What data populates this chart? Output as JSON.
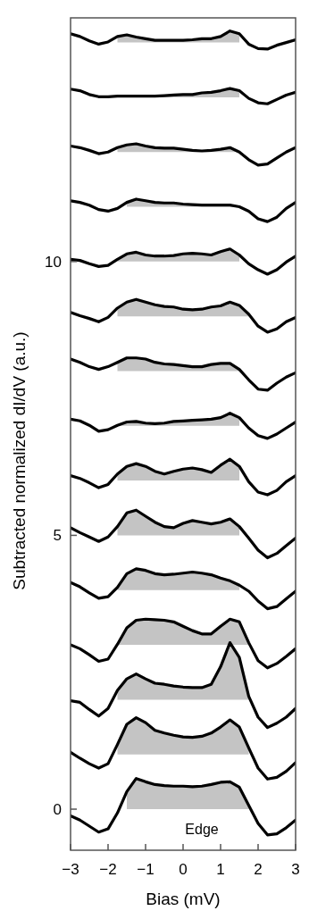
{
  "chart_data": {
    "type": "line",
    "xlabel": "Bias (mV)",
    "ylabel": "Subtracted normalized dI/dV (a.u.)",
    "x": [
      -3,
      -2.75,
      -2.5,
      -2.25,
      -2,
      -1.75,
      -1.5,
      -1.25,
      -1,
      -0.75,
      -0.5,
      -0.25,
      0,
      0.25,
      0.5,
      0.75,
      1,
      1.25,
      1.5,
      1.75,
      2,
      2.25,
      2.5,
      2.75,
      3
    ],
    "xlim": [
      -3,
      3
    ],
    "xticks": [
      -3,
      -2,
      -1,
      0,
      1,
      2,
      3
    ],
    "ylim": [
      -0.75,
      14.45
    ],
    "yticks": [
      0,
      5,
      10
    ],
    "grid": false,
    "line_style": "solid",
    "annotations": [
      "Edge"
    ],
    "series": [
      {
        "color": "#000000",
        "values": [
          -0.12,
          -0.2,
          -0.31,
          -0.42,
          -0.36,
          -0.07,
          0.32,
          0.56,
          0.5,
          0.45,
          0.43,
          0.42,
          0.42,
          0.41,
          0.42,
          0.45,
          0.49,
          0.5,
          0.4,
          0.07,
          -0.26,
          -0.47,
          -0.45,
          -0.34,
          -0.2
        ],
        "lower": [
          null,
          null,
          null,
          null,
          null,
          null,
          0,
          0,
          0,
          0,
          0,
          0,
          0,
          0,
          0,
          0,
          0,
          0,
          0,
          0,
          null,
          null,
          null,
          null,
          null
        ],
        "upper": [
          null,
          null,
          null,
          null,
          null,
          null,
          0.32,
          0.56,
          0.5,
          0.45,
          0.43,
          0.42,
          0.42,
          0.41,
          0.42,
          0.45,
          0.49,
          0.5,
          0.4,
          0.07,
          null,
          null,
          null,
          null,
          null
        ]
      },
      {
        "color": "#000000",
        "values": [
          1.04,
          0.93,
          0.83,
          0.75,
          0.83,
          1.18,
          1.55,
          1.67,
          1.58,
          1.44,
          1.39,
          1.35,
          1.32,
          1.31,
          1.33,
          1.39,
          1.5,
          1.63,
          1.5,
          1.12,
          0.75,
          0.55,
          0.58,
          0.69,
          0.85
        ],
        "lower": [
          null,
          null,
          null,
          null,
          null,
          1,
          1,
          1,
          1,
          1,
          1,
          1,
          1,
          1,
          1,
          1,
          1,
          1,
          1,
          1,
          null,
          null,
          null,
          null,
          null
        ],
        "upper": [
          null,
          null,
          null,
          null,
          null,
          1.18,
          1.55,
          1.67,
          1.58,
          1.44,
          1.39,
          1.35,
          1.32,
          1.31,
          1.33,
          1.39,
          1.5,
          1.63,
          1.5,
          1.12,
          null,
          null,
          null,
          null,
          null
        ]
      },
      {
        "color": "#000000",
        "values": [
          1.98,
          1.95,
          1.82,
          1.7,
          1.84,
          2.17,
          2.38,
          2.47,
          2.38,
          2.3,
          2.28,
          2.25,
          2.23,
          2.22,
          2.22,
          2.28,
          2.6,
          3.04,
          2.77,
          2.06,
          1.68,
          1.49,
          1.57,
          1.68,
          1.84
        ],
        "lower": [
          null,
          null,
          null,
          null,
          null,
          2,
          2,
          2,
          2,
          2,
          2,
          2,
          2,
          2,
          2,
          2,
          2,
          2,
          2,
          2,
          null,
          null,
          null,
          null,
          null
        ],
        "upper": [
          null,
          null,
          null,
          null,
          null,
          2.17,
          2.38,
          2.47,
          2.38,
          2.3,
          2.28,
          2.25,
          2.23,
          2.22,
          2.22,
          2.28,
          2.6,
          3.04,
          2.77,
          2.06,
          null,
          null,
          null,
          null,
          null
        ]
      },
      {
        "color": "#000000",
        "values": [
          3,
          2.93,
          2.82,
          2.7,
          2.74,
          3.01,
          3.31,
          3.45,
          3.47,
          3.46,
          3.45,
          3.42,
          3.34,
          3.26,
          3.2,
          3.2,
          3.34,
          3.47,
          3.42,
          3.04,
          2.71,
          2.58,
          2.66,
          2.79,
          2.93
        ],
        "lower": [
          null,
          null,
          null,
          null,
          null,
          3,
          3,
          3,
          3,
          3,
          3,
          3,
          3,
          3,
          3,
          3,
          3,
          3,
          3,
          3,
          null,
          null,
          null,
          null,
          null
        ],
        "upper": [
          null,
          null,
          null,
          null,
          null,
          3.01,
          3.31,
          3.45,
          3.47,
          3.46,
          3.45,
          3.42,
          3.34,
          3.26,
          3.2,
          3.2,
          3.34,
          3.47,
          3.42,
          3.04,
          null,
          null,
          null,
          null,
          null
        ]
      },
      {
        "color": "#000000",
        "values": [
          4.14,
          4.06,
          3.95,
          3.85,
          3.88,
          4.05,
          4.3,
          4.39,
          4.36,
          4.3,
          4.28,
          4.29,
          4.31,
          4.33,
          4.31,
          4.28,
          4.22,
          4.17,
          4.09,
          3.98,
          3.8,
          3.66,
          3.7,
          3.84,
          3.98
        ],
        "lower": [
          null,
          null,
          null,
          null,
          null,
          4,
          4,
          4,
          4,
          4,
          4,
          4,
          4,
          4,
          4,
          4,
          4,
          4,
          4,
          null,
          null,
          null,
          null,
          null,
          null
        ],
        "upper": [
          null,
          null,
          null,
          null,
          null,
          4.05,
          4.3,
          4.39,
          4.36,
          4.3,
          4.28,
          4.29,
          4.31,
          4.33,
          4.31,
          4.28,
          4.22,
          4.17,
          4.09,
          null,
          null,
          null,
          null,
          null,
          null
        ]
      },
      {
        "color": "#000000",
        "values": [
          5.14,
          5.05,
          4.97,
          4.89,
          4.97,
          5.16,
          5.41,
          5.46,
          5.35,
          5.24,
          5.16,
          5.14,
          5.22,
          5.27,
          5.24,
          5.21,
          5.24,
          5.3,
          5.16,
          4.95,
          4.73,
          4.59,
          4.67,
          4.81,
          4.95
        ],
        "lower": [
          null,
          null,
          null,
          null,
          null,
          5,
          5,
          5,
          5,
          5,
          5,
          5,
          5,
          5,
          5,
          5,
          5,
          5,
          5,
          null,
          null,
          null,
          null,
          null,
          null
        ],
        "upper": [
          null,
          null,
          null,
          null,
          null,
          5.16,
          5.41,
          5.46,
          5.35,
          5.24,
          5.16,
          5.14,
          5.22,
          5.27,
          5.24,
          5.21,
          5.24,
          5.3,
          5.16,
          null,
          null,
          null,
          null,
          null,
          null
        ]
      },
      {
        "color": "#000000",
        "values": [
          6.09,
          6.04,
          5.96,
          5.87,
          5.93,
          6.12,
          6.26,
          6.31,
          6.26,
          6.17,
          6.12,
          6.17,
          6.21,
          6.23,
          6.2,
          6.15,
          6.28,
          6.39,
          6.26,
          5.98,
          5.79,
          5.74,
          5.82,
          5.98,
          6.09
        ],
        "lower": [
          null,
          null,
          null,
          null,
          null,
          6,
          6,
          6,
          6,
          6,
          6,
          6,
          6,
          6,
          6,
          6,
          6,
          6,
          6,
          null,
          null,
          null,
          null,
          null,
          null
        ],
        "upper": [
          null,
          null,
          null,
          null,
          null,
          6.12,
          6.26,
          6.31,
          6.26,
          6.17,
          6.12,
          6.17,
          6.21,
          6.23,
          6.2,
          6.15,
          6.28,
          6.39,
          6.26,
          null,
          null,
          null,
          null,
          null,
          null
        ]
      },
      {
        "color": "#000000",
        "values": [
          7.12,
          7.09,
          7.01,
          6.9,
          6.93,
          7.01,
          7.07,
          7.08,
          7.05,
          7.04,
          7.05,
          7.08,
          7.09,
          7.1,
          7.11,
          7.12,
          7.15,
          7.23,
          7.15,
          6.96,
          6.82,
          6.77,
          6.85,
          6.96,
          7.07
        ],
        "lower": [
          null,
          null,
          null,
          null,
          null,
          7,
          7,
          7,
          7,
          7,
          7,
          7,
          7,
          7,
          7,
          7,
          7,
          7,
          7,
          null,
          null,
          null,
          null,
          null,
          null
        ],
        "upper": [
          null,
          null,
          null,
          null,
          null,
          7.01,
          7.07,
          7.08,
          7.05,
          7.04,
          7.05,
          7.08,
          7.09,
          7.1,
          7.11,
          7.12,
          7.15,
          7.23,
          7.15,
          null,
          null,
          null,
          null,
          null,
          null
        ]
      },
      {
        "color": "#000000",
        "values": [
          8.22,
          8.16,
          8.08,
          8.03,
          8.08,
          8.16,
          8.24,
          8.24,
          8.22,
          8.16,
          8.13,
          8.12,
          8.1,
          8.08,
          8.08,
          8.12,
          8.14,
          8.14,
          8.03,
          7.84,
          7.67,
          7.65,
          7.78,
          7.89,
          7.97
        ],
        "lower": [
          null,
          null,
          null,
          null,
          null,
          8,
          8,
          8,
          8,
          8,
          8,
          8,
          8,
          8,
          8,
          8,
          8,
          8,
          8,
          null,
          null,
          null,
          null,
          null,
          null
        ],
        "upper": [
          null,
          null,
          null,
          null,
          null,
          8.16,
          8.24,
          8.24,
          8.22,
          8.16,
          8.13,
          8.12,
          8.1,
          8.08,
          8.08,
          8.12,
          8.14,
          8.14,
          8.03,
          null,
          null,
          null,
          null,
          null,
          null
        ]
      },
      {
        "color": "#000000",
        "values": [
          9.07,
          9.01,
          8.96,
          8.9,
          8.98,
          9.15,
          9.26,
          9.31,
          9.26,
          9.21,
          9.18,
          9.17,
          9.13,
          9.12,
          9.13,
          9.17,
          9.19,
          9.26,
          9.2,
          9.04,
          8.82,
          8.71,
          8.77,
          8.9,
          8.98
        ],
        "lower": [
          null,
          null,
          null,
          null,
          null,
          9,
          9,
          9,
          9,
          9,
          9,
          9,
          9,
          9,
          9,
          9,
          9,
          9,
          9,
          9,
          null,
          null,
          null,
          null,
          null
        ],
        "upper": [
          null,
          null,
          null,
          null,
          null,
          9.15,
          9.26,
          9.31,
          9.26,
          9.21,
          9.18,
          9.17,
          9.13,
          9.12,
          9.13,
          9.17,
          9.19,
          9.26,
          9.2,
          9.04,
          null,
          null,
          null,
          null,
          null
        ]
      },
      {
        "color": "#000000",
        "values": [
          10.04,
          10.02,
          9.96,
          9.91,
          9.93,
          10.04,
          10.14,
          10.17,
          10.12,
          10.1,
          10.1,
          10.11,
          10.14,
          10.15,
          10.14,
          10.12,
          10.18,
          10.23,
          10.12,
          9.96,
          9.85,
          9.77,
          9.85,
          9.99,
          10.1
        ],
        "lower": [
          null,
          null,
          null,
          null,
          null,
          10,
          10,
          10,
          10,
          10,
          10,
          10,
          10,
          10,
          10,
          10,
          10,
          10,
          10,
          null,
          null,
          null,
          null,
          null,
          null
        ],
        "upper": [
          null,
          null,
          null,
          null,
          null,
          10.04,
          10.14,
          10.17,
          10.12,
          10.1,
          10.1,
          10.11,
          10.14,
          10.15,
          10.14,
          10.12,
          10.18,
          10.23,
          10.12,
          null,
          null,
          null,
          null,
          null,
          null
        ]
      },
      {
        "color": "#000000",
        "values": [
          11.11,
          11.08,
          11.03,
          10.95,
          10.92,
          10.97,
          11.08,
          11.14,
          11.11,
          11.08,
          11.07,
          11.07,
          11.05,
          11.04,
          11.03,
          11.03,
          11.03,
          11.03,
          11,
          10.92,
          10.78,
          10.73,
          10.81,
          10.97,
          11.08
        ],
        "lower": [
          null,
          null,
          null,
          null,
          null,
          null,
          11,
          11,
          11,
          11,
          11,
          11,
          11,
          11,
          11,
          11,
          11,
          11,
          11,
          null,
          null,
          null,
          null,
          null,
          null
        ],
        "upper": [
          null,
          null,
          null,
          null,
          null,
          null,
          11.08,
          11.14,
          11.11,
          11.08,
          11.07,
          11.07,
          11.05,
          11.04,
          11.03,
          11.03,
          11.03,
          11.03,
          11,
          null,
          null,
          null,
          null,
          null,
          null
        ]
      },
      {
        "color": "#000000",
        "values": [
          12.11,
          12.08,
          12.03,
          11.97,
          12,
          12.08,
          12.13,
          12.15,
          12.11,
          12.08,
          12.07,
          12.07,
          12.05,
          12.03,
          12.02,
          12.03,
          12.05,
          12.08,
          12,
          11.86,
          11.76,
          11.78,
          11.89,
          12,
          12.08
        ],
        "lower": [
          null,
          null,
          null,
          null,
          null,
          12,
          12,
          12,
          12,
          12,
          12,
          12,
          12,
          12,
          12,
          12,
          12,
          12,
          12,
          null,
          null,
          null,
          null,
          null,
          null
        ],
        "upper": [
          null,
          null,
          null,
          null,
          null,
          12.08,
          12.13,
          12.15,
          12.11,
          12.08,
          12.07,
          12.07,
          12.05,
          12.03,
          12.02,
          12.03,
          12.05,
          12.08,
          12,
          null,
          null,
          null,
          null,
          null,
          null
        ]
      },
      {
        "color": "#000000",
        "values": [
          13.15,
          13.12,
          13.05,
          13.01,
          13.01,
          13.02,
          13.02,
          13.02,
          13.02,
          13.02,
          13.03,
          13.04,
          13.05,
          13.05,
          13.08,
          13.09,
          13.12,
          13.16,
          13.12,
          12.98,
          12.9,
          12.88,
          12.96,
          13.04,
          13.09
        ],
        "lower": [
          null,
          null,
          null,
          null,
          null,
          13,
          13,
          13,
          13,
          13,
          13,
          13,
          13,
          13,
          13,
          13,
          13,
          13,
          13,
          null,
          null,
          null,
          null,
          null,
          null
        ],
        "upper": [
          null,
          null,
          null,
          null,
          null,
          13.02,
          13.02,
          13.02,
          13.02,
          13.02,
          13.03,
          13.04,
          13.05,
          13.05,
          13.08,
          13.09,
          13.12,
          13.16,
          13.12,
          null,
          null,
          null,
          null,
          null,
          null
        ]
      },
      {
        "color": "#000000",
        "values": [
          14.16,
          14.11,
          14.03,
          13.97,
          14.01,
          14.11,
          14.14,
          14.1,
          14.07,
          14.04,
          14.04,
          14.04,
          14.04,
          14.05,
          14.07,
          14.07,
          14.11,
          14.21,
          14.16,
          13.97,
          13.89,
          13.88,
          13.95,
          14,
          14.05
        ],
        "lower": [
          null,
          null,
          null,
          null,
          null,
          14,
          14,
          14,
          14,
          14,
          14,
          14,
          14,
          14,
          14,
          14,
          14,
          14,
          14,
          null,
          null,
          null,
          null,
          null,
          null
        ],
        "upper": [
          null,
          null,
          null,
          null,
          null,
          14.11,
          14.14,
          14.1,
          14.07,
          14.04,
          14.04,
          14.04,
          14.04,
          14.05,
          14.07,
          14.07,
          14.11,
          14.21,
          14.16,
          null,
          null,
          null,
          null,
          null,
          null
        ]
      }
    ]
  }
}
